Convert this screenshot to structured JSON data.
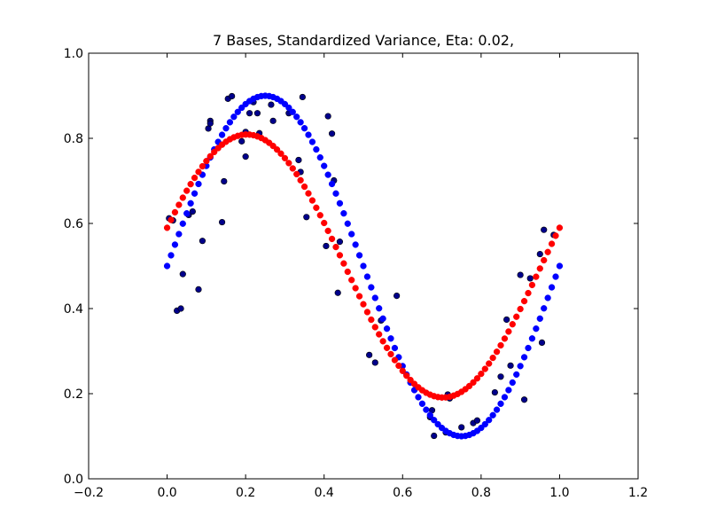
{
  "chart_data": {
    "type": "scatter",
    "title": "7 Bases, Standardized Variance, Eta: 0.02,",
    "xlabel": "",
    "ylabel": "",
    "xlim": [
      -0.2,
      1.2
    ],
    "ylim": [
      0.0,
      1.0
    ],
    "grid": false,
    "x_ticks": [
      -0.2,
      0.0,
      0.2,
      0.4,
      0.6,
      0.8,
      1.0,
      1.2
    ],
    "x_tick_labels": [
      "−0.2",
      "0.0",
      "0.2",
      "0.4",
      "0.6",
      "0.8",
      "1.0",
      "1.2"
    ],
    "y_ticks": [
      0.0,
      0.2,
      0.4,
      0.6,
      0.8,
      1.0
    ],
    "y_tick_labels": [
      "0.0",
      "0.2",
      "0.4",
      "0.6",
      "0.8",
      "1.0"
    ],
    "series": [
      {
        "kind": "scatter",
        "color": "#00008b",
        "points": [
          [
            0.005,
            0.612
          ],
          [
            0.015,
            0.607
          ],
          [
            0.025,
            0.395
          ],
          [
            0.035,
            0.4
          ],
          [
            0.04,
            0.481
          ],
          [
            0.055,
            0.62
          ],
          [
            0.065,
            0.628
          ],
          [
            0.08,
            0.445
          ],
          [
            0.09,
            0.559
          ],
          [
            0.105,
            0.823
          ],
          [
            0.11,
            0.841
          ],
          [
            0.11,
            0.835
          ],
          [
            0.14,
            0.603
          ],
          [
            0.145,
            0.699
          ],
          [
            0.155,
            0.893
          ],
          [
            0.165,
            0.899
          ],
          [
            0.19,
            0.793
          ],
          [
            0.2,
            0.815
          ],
          [
            0.2,
            0.757
          ],
          [
            0.21,
            0.859
          ],
          [
            0.22,
            0.885
          ],
          [
            0.23,
            0.859
          ],
          [
            0.235,
            0.812
          ],
          [
            0.265,
            0.879
          ],
          [
            0.27,
            0.841
          ],
          [
            0.31,
            0.859
          ],
          [
            0.335,
            0.749
          ],
          [
            0.34,
            0.721
          ],
          [
            0.345,
            0.897
          ],
          [
            0.355,
            0.615
          ],
          [
            0.405,
            0.547
          ],
          [
            0.41,
            0.852
          ],
          [
            0.42,
            0.811
          ],
          [
            0.425,
            0.701
          ],
          [
            0.435,
            0.437
          ],
          [
            0.44,
            0.557
          ],
          [
            0.515,
            0.291
          ],
          [
            0.53,
            0.273
          ],
          [
            0.545,
            0.372
          ],
          [
            0.585,
            0.43
          ],
          [
            0.67,
            0.145
          ],
          [
            0.675,
            0.161
          ],
          [
            0.68,
            0.101
          ],
          [
            0.71,
            0.109
          ],
          [
            0.715,
            0.198
          ],
          [
            0.72,
            0.189
          ],
          [
            0.75,
            0.121
          ],
          [
            0.78,
            0.131
          ],
          [
            0.79,
            0.137
          ],
          [
            0.835,
            0.203
          ],
          [
            0.85,
            0.24
          ],
          [
            0.865,
            0.374
          ],
          [
            0.875,
            0.266
          ],
          [
            0.9,
            0.479
          ],
          [
            0.91,
            0.186
          ],
          [
            0.925,
            0.471
          ],
          [
            0.95,
            0.528
          ],
          [
            0.955,
            0.32
          ],
          [
            0.96,
            0.585
          ],
          [
            0.985,
            0.573
          ]
        ]
      },
      {
        "kind": "fit-line",
        "color": "#0000ff",
        "equation": "y = 0.5 + 0.4 sin(2πx)",
        "x_range": [
          0,
          1
        ]
      },
      {
        "kind": "fit-line",
        "color": "#ff0000",
        "equation": "y = 0.5 + 0.309 sin(2πx + 0.295)",
        "x_range": [
          0,
          1
        ]
      }
    ]
  }
}
